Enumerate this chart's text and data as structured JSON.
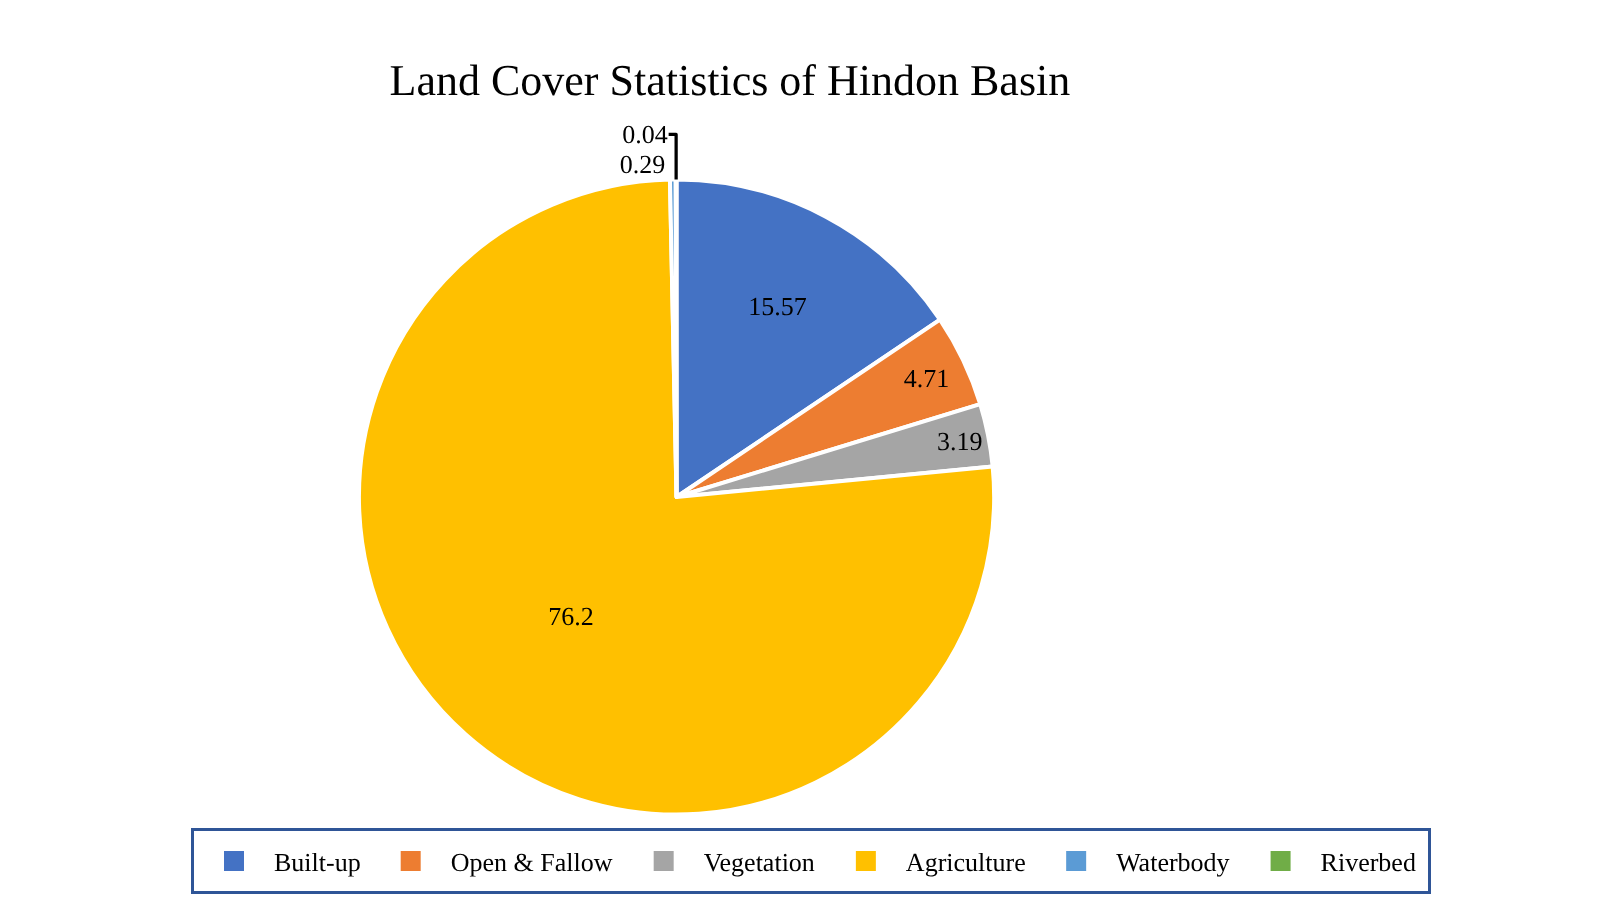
{
  "chart_data": {
    "type": "pie",
    "title": "Land Cover Statistics of Hindon Basin",
    "categories": [
      "Built-up",
      "Open & Fallow",
      "Vegetation",
      "Agriculture",
      "Waterbody",
      "Riverbed"
    ],
    "values": [
      15.57,
      4.71,
      3.19,
      76.2,
      0.29,
      0.04
    ],
    "colors": [
      "#4472c4",
      "#ed7d31",
      "#a5a5a5",
      "#ffc000",
      "#5b9bd5",
      "#70ad47"
    ],
    "data_labels": true,
    "legend": "bottom"
  }
}
